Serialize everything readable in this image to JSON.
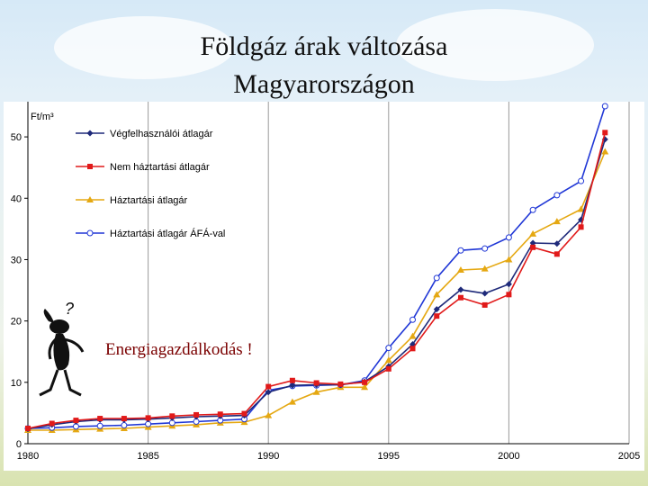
{
  "slide": {
    "title_line1": "Földgáz árak változása",
    "title_line2": "Magyarországon",
    "annotation": "Energiagazdálkodás !",
    "question_mark": "?"
  },
  "chart_data": {
    "type": "line",
    "title": "",
    "xlabel": "",
    "ylabel": "Ft/m³",
    "xlim": [
      1980,
      2005
    ],
    "ylim": [
      0,
      55
    ],
    "xticks": [
      1980,
      1985,
      1990,
      1995,
      2000,
      2005
    ],
    "yticks": [
      0,
      10,
      20,
      30,
      40,
      50
    ],
    "grid": "vertical",
    "legend_position": "top-left",
    "x": [
      1980,
      1981,
      1982,
      1983,
      1984,
      1985,
      1986,
      1987,
      1988,
      1989,
      1990,
      1991,
      1992,
      1993,
      1994,
      1995,
      1996,
      1997,
      1998,
      1999,
      2000,
      2001,
      2002,
      2003,
      2004
    ],
    "series": [
      {
        "name": "Végfelhasználói átlagár",
        "color": "#1f2a7a",
        "marker": "diamond",
        "values": [
          2.4,
          3.1,
          3.6,
          3.9,
          3.9,
          4.0,
          4.2,
          4.4,
          4.5,
          4.6,
          8.4,
          9.5,
          9.6,
          9.6,
          10.1,
          12.6,
          16.2,
          21.9,
          25.1,
          24.5,
          26.0,
          32.7,
          32.6,
          36.5,
          49.6
        ]
      },
      {
        "name": "Nem háztartási átlagár",
        "color": "#e11a1a",
        "marker": "square",
        "values": [
          2.5,
          3.3,
          3.8,
          4.1,
          4.1,
          4.2,
          4.5,
          4.7,
          4.8,
          4.9,
          9.3,
          10.3,
          9.9,
          9.7,
          10.0,
          12.2,
          15.5,
          20.8,
          23.8,
          22.6,
          24.3,
          32.0,
          30.9,
          35.3,
          50.7
        ]
      },
      {
        "name": "Háztartási átlagár",
        "color": "#e5a812",
        "marker": "triangle",
        "values": [
          2.2,
          2.2,
          2.3,
          2.4,
          2.5,
          2.7,
          2.9,
          3.1,
          3.4,
          3.5,
          4.6,
          6.8,
          8.4,
          9.2,
          9.2,
          13.6,
          17.5,
          24.3,
          28.3,
          28.5,
          30.0,
          34.2,
          36.2,
          38.2,
          47.6
        ]
      },
      {
        "name": "Háztartási átlagár ÁFÁ-val",
        "color": "#2037d6",
        "marker": "circle",
        "values": [
          2.5,
          2.6,
          2.8,
          2.9,
          3.0,
          3.2,
          3.4,
          3.6,
          3.8,
          4.0,
          8.7,
          9.4,
          9.5,
          9.6,
          10.3,
          15.6,
          20.2,
          27.0,
          31.5,
          31.8,
          33.6,
          38.1,
          40.5,
          42.8,
          55.0
        ]
      }
    ]
  },
  "colors": {
    "axis": "#000000",
    "grid": "#9a9a9a",
    "annotation": "#7a0000"
  }
}
